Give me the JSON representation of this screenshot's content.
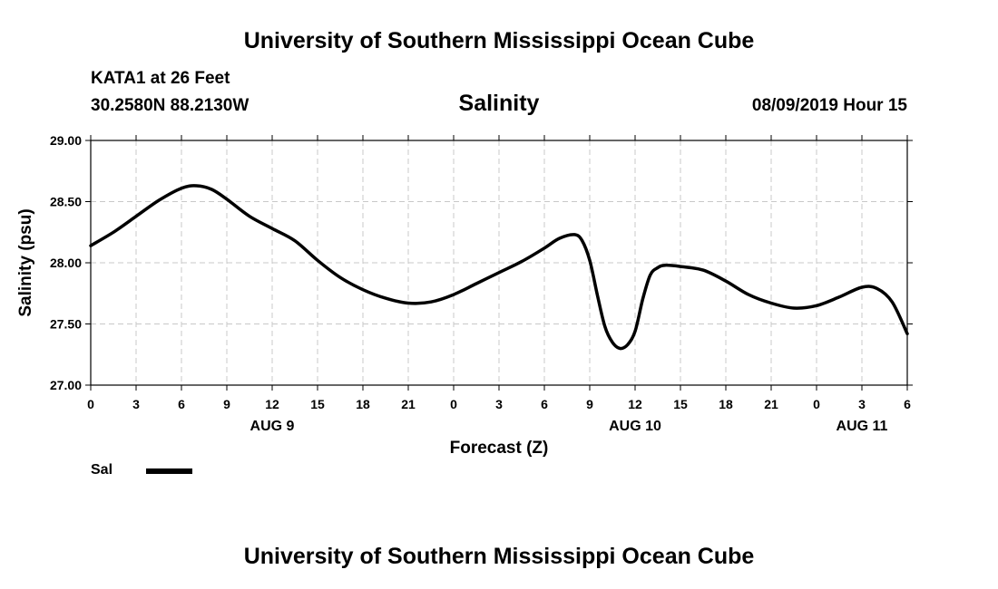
{
  "header": {
    "title": "University of Southern Mississippi Ocean Cube",
    "station": "KATA1 at 26 Feet",
    "coords": "30.2580N 88.2130W",
    "variable": "Salinity",
    "datetime": "08/09/2019 Hour 15"
  },
  "footer": {
    "title": "University of Southern Mississippi Ocean Cube"
  },
  "legend": {
    "label": "Sal",
    "color": "#000000"
  },
  "chart_data": {
    "type": "line",
    "title": "Salinity",
    "xlabel": "Forecast (Z)",
    "ylabel": "Salinity (psu)",
    "ylim": [
      27.0,
      29.0
    ],
    "xlim": [
      0,
      54
    ],
    "x_unit": "forecast hour from AUG 9 00Z",
    "grid": true,
    "yticks": [
      "27.00",
      "27.50",
      "28.00",
      "28.50",
      "29.00"
    ],
    "xticks": [
      {
        "h": 0,
        "label": "0"
      },
      {
        "h": 3,
        "label": "3"
      },
      {
        "h": 6,
        "label": "6"
      },
      {
        "h": 9,
        "label": "9"
      },
      {
        "h": 12,
        "label": "12"
      },
      {
        "h": 15,
        "label": "15"
      },
      {
        "h": 18,
        "label": "18"
      },
      {
        "h": 21,
        "label": "21"
      },
      {
        "h": 24,
        "label": "0"
      },
      {
        "h": 27,
        "label": "3"
      },
      {
        "h": 30,
        "label": "6"
      },
      {
        "h": 33,
        "label": "9"
      },
      {
        "h": 36,
        "label": "12"
      },
      {
        "h": 39,
        "label": "15"
      },
      {
        "h": 42,
        "label": "18"
      },
      {
        "h": 45,
        "label": "21"
      },
      {
        "h": 48,
        "label": "0"
      },
      {
        "h": 51,
        "label": "3"
      },
      {
        "h": 54,
        "label": "6"
      }
    ],
    "day_labels": [
      {
        "h": 12,
        "label": "AUG 9"
      },
      {
        "h": 36,
        "label": "AUG 10"
      },
      {
        "h": 51,
        "label": "AUG 11"
      }
    ],
    "series": [
      {
        "name": "Sal",
        "x": [
          0,
          1.5,
          3,
          4.5,
          6,
          7,
          8,
          9,
          10.5,
          12,
          13.5,
          15,
          16.5,
          18,
          19.5,
          21,
          22.5,
          24,
          25.5,
          27,
          28.5,
          30,
          31,
          32,
          32.5,
          33,
          33.5,
          34,
          34.5,
          35,
          35.5,
          36,
          36.5,
          37,
          37.5,
          38,
          39,
          40.5,
          42,
          43.5,
          45,
          46.5,
          48,
          49.5,
          51,
          52,
          53,
          54
        ],
        "y": [
          28.14,
          28.25,
          28.38,
          28.51,
          28.61,
          28.63,
          28.6,
          28.52,
          28.38,
          28.28,
          28.18,
          28.02,
          27.88,
          27.78,
          27.71,
          27.67,
          27.68,
          27.74,
          27.83,
          27.92,
          28.01,
          28.12,
          28.2,
          28.23,
          28.18,
          28.02,
          27.74,
          27.48,
          27.35,
          27.3,
          27.33,
          27.44,
          27.7,
          27.9,
          27.96,
          27.98,
          27.97,
          27.94,
          27.85,
          27.74,
          27.67,
          27.63,
          27.65,
          27.72,
          27.8,
          27.79,
          27.68,
          27.42
        ]
      }
    ]
  }
}
